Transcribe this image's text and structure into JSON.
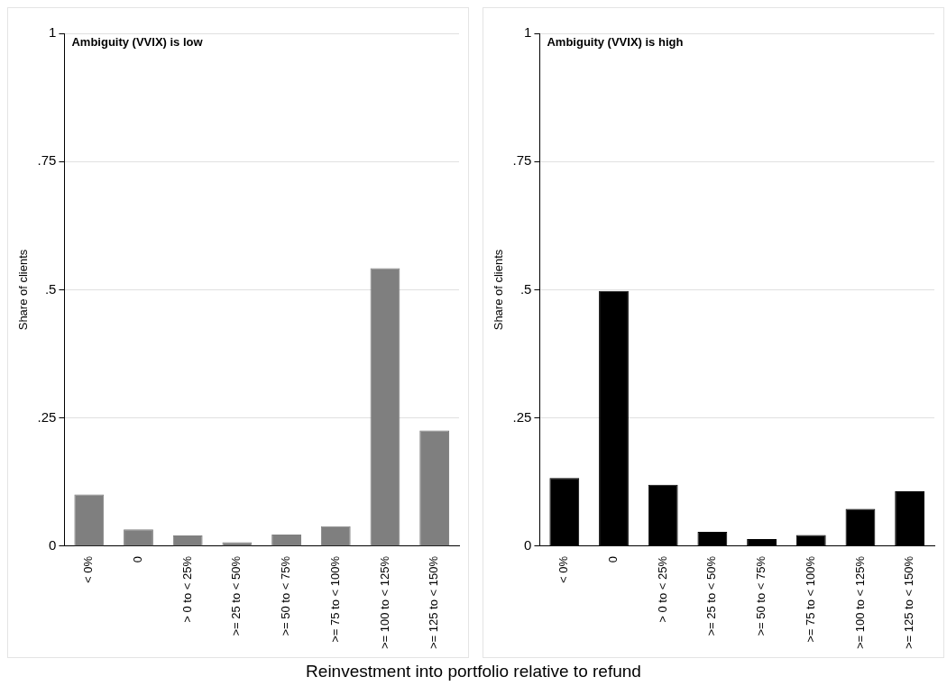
{
  "chart_data": [
    {
      "type": "bar",
      "title": "Ambiguity (VVIX) is low",
      "ylabel": "Share of clients",
      "xlabel": "Reinvestment into portfolio relative to refund",
      "categories": [
        "< 0%",
        "0",
        "> 0 to < 25%",
        ">= 25 to < 50%",
        ">= 50 to < 75%",
        ">= 75 to < 100%",
        ">= 100 to < 125%",
        ">= 125 to < 150%"
      ],
      "values": [
        0.101,
        0.033,
        0.021,
        0.008,
        0.023,
        0.039,
        0.542,
        0.226
      ],
      "color": "#7f7f7f",
      "ylim": [
        0,
        1
      ],
      "yticks": [
        {
          "value": 0,
          "label": "0"
        },
        {
          "value": 0.25,
          "label": ".25"
        },
        {
          "value": 0.5,
          "label": ".5"
        },
        {
          "value": 0.75,
          "label": ".75"
        },
        {
          "value": 1,
          "label": "1"
        }
      ],
      "grid": "y",
      "legend": false
    },
    {
      "type": "bar",
      "title": "Ambiguity (VVIX) is high",
      "ylabel": "Share of clients",
      "categories": [
        "< 0%",
        "0",
        "> 0 to < 25%",
        ">= 25 to < 50%",
        ">= 50 to < 75%",
        ">= 75 to < 100%",
        ">= 100 to < 125%",
        ">= 125 to < 150%"
      ],
      "values": [
        0.133,
        0.498,
        0.12,
        0.028,
        0.014,
        0.022,
        0.073,
        0.107
      ],
      "color": "#000000",
      "ylim": [
        0,
        1
      ],
      "yticks": [
        {
          "value": 0,
          "label": "0"
        },
        {
          "value": 0.25,
          "label": ".25"
        },
        {
          "value": 0.5,
          "label": ".5"
        },
        {
          "value": 0.75,
          "label": ".75"
        },
        {
          "value": 1,
          "label": "1"
        }
      ],
      "grid": "y",
      "legend": false
    }
  ]
}
